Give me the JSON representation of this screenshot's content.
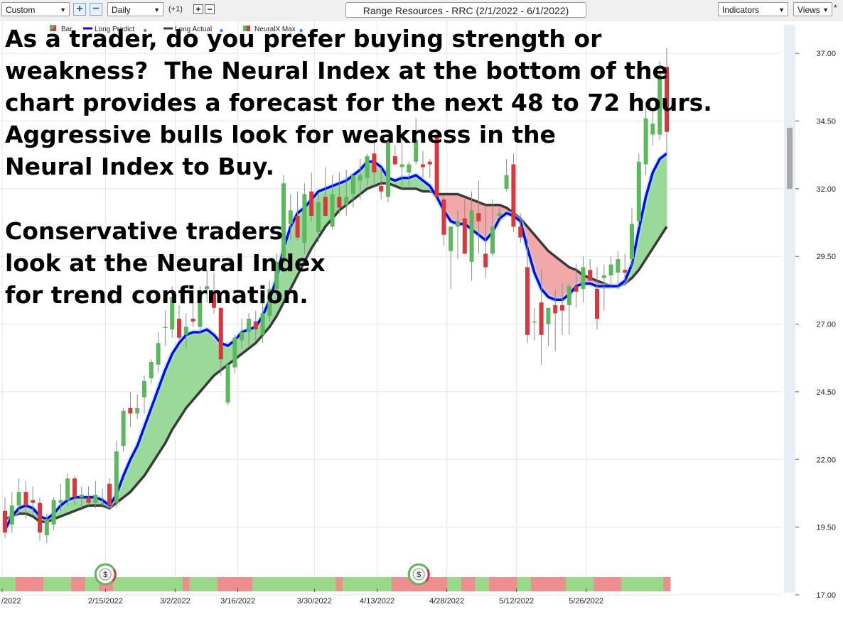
{
  "toolbar": {
    "preset": "Custom",
    "period": "Daily",
    "period_offset": "(+1)",
    "title": "Range Resources - RRC (2/1/2022 - 6/1/2022)",
    "indicators": "Indicators",
    "views": "Views"
  },
  "overlay": {
    "paragraph1": "As a trader, do you prefer buying strength or\nweakness?  The Neural Index at the bottom of the\nchart provides a forecast for the next 48 to 72 hours.\nAggressive bulls look for weakness in the\nNeural Index to Buy.",
    "paragraph2": "Conservative traders\nlook at the Neural Index\nfor trend confirmation."
  },
  "colors": {
    "up_candle": "#5cb85c",
    "down_candle": "#d9363e",
    "long_predict": "#0a0ae0",
    "long_actual": "#3a3a3a",
    "fill_bull": "#9ad99a",
    "fill_bear": "#f0a8a8",
    "index_bull": "#9ad88a",
    "index_bear": "#ee8e8e"
  },
  "chart_data": {
    "type": "candlestick",
    "title": "Range Resources - RRC (2/1/2022 - 6/1/2022)",
    "ylim": [
      17.0,
      38.0
    ],
    "y_ticks": [
      "17.00",
      "19.50",
      "22.00",
      "24.50",
      "27.00",
      "29.50",
      "32.00",
      "34.50",
      "37.00"
    ],
    "x_ticks": [
      "/2022",
      "2/15/2022",
      "3/2/2022",
      "3/16/2022",
      "3/30/2022",
      "4/13/2022",
      "4/28/2022",
      "5/12/2022",
      "5/26/2022"
    ],
    "legend": [
      "Bar",
      "Long Predict",
      "Long Actual",
      "NeuralX Max"
    ],
    "candles": [
      [
        20.1,
        20.6,
        19.1,
        19.3
      ],
      [
        19.6,
        20.8,
        19.3,
        20.3
      ],
      [
        20.3,
        21.3,
        20.0,
        20.8
      ],
      [
        20.8,
        21.2,
        19.8,
        20.3
      ],
      [
        20.5,
        21.0,
        20.0,
        20.4
      ],
      [
        20.4,
        20.6,
        19.0,
        19.3
      ],
      [
        19.2,
        20.0,
        18.9,
        19.8
      ],
      [
        19.6,
        20.6,
        19.4,
        20.5
      ],
      [
        20.4,
        21.1,
        20.1,
        20.5
      ],
      [
        20.5,
        21.5,
        20.3,
        21.3
      ],
      [
        21.3,
        21.4,
        20.3,
        20.6
      ],
      [
        20.6,
        21.0,
        20.2,
        20.7
      ],
      [
        20.6,
        21.0,
        20.3,
        20.4
      ],
      [
        20.4,
        21.2,
        20.2,
        20.7
      ],
      [
        20.4,
        20.9,
        20.2,
        20.4
      ],
      [
        21.1,
        21.3,
        20.2,
        20.3
      ],
      [
        20.4,
        22.7,
        20.2,
        22.3
      ],
      [
        22.5,
        23.9,
        22.3,
        23.8
      ],
      [
        23.9,
        24.5,
        23.2,
        23.7
      ],
      [
        23.7,
        24.4,
        23.5,
        23.9
      ],
      [
        24.3,
        25.1,
        23.7,
        24.9
      ],
      [
        25.0,
        25.7,
        24.8,
        25.6
      ],
      [
        25.5,
        26.7,
        25.2,
        26.3
      ],
      [
        26.9,
        27.5,
        26.2,
        26.9
      ],
      [
        26.8,
        28.4,
        26.5,
        28.0
      ],
      [
        27.2,
        27.7,
        26.4,
        26.5
      ],
      [
        26.6,
        27.4,
        26.1,
        26.9
      ],
      [
        27.2,
        28.0,
        26.9,
        27.1
      ],
      [
        26.9,
        28.4,
        26.6,
        28.2
      ],
      [
        28.3,
        29.0,
        27.8,
        28.4
      ],
      [
        28.2,
        28.9,
        27.4,
        27.6
      ],
      [
        27.6,
        27.6,
        25.1,
        25.7
      ],
      [
        24.1,
        25.6,
        24.0,
        25.5
      ],
      [
        25.4,
        26.6,
        25.2,
        26.5
      ],
      [
        26.4,
        27.2,
        26.1,
        26.7
      ],
      [
        26.7,
        27.4,
        26.2,
        27.2
      ],
      [
        27.1,
        27.5,
        26.4,
        26.8
      ],
      [
        26.6,
        27.9,
        26.3,
        27.4
      ],
      [
        27.3,
        28.6,
        27.1,
        28.3
      ],
      [
        28.3,
        29.6,
        28.1,
        29.3
      ],
      [
        29.4,
        32.5,
        29.2,
        32.2
      ],
      [
        30.7,
        31.8,
        30.1,
        31.2
      ],
      [
        31.0,
        31.9,
        30.1,
        30.2
      ],
      [
        30.0,
        32.2,
        29.6,
        31.8
      ],
      [
        31.9,
        32.6,
        30.8,
        31.0
      ],
      [
        30.4,
        31.8,
        30.0,
        31.5
      ],
      [
        31.7,
        32.8,
        31.1,
        31.0
      ],
      [
        30.6,
        32.5,
        30.5,
        31.8
      ],
      [
        31.7,
        32.6,
        31.1,
        31.3
      ],
      [
        31.4,
        32.7,
        31.0,
        31.7
      ],
      [
        31.8,
        32.4,
        31.3,
        32.5
      ],
      [
        32.3,
        33.1,
        31.6,
        32.5
      ],
      [
        32.4,
        33.3,
        32.1,
        33.2
      ],
      [
        33.3,
        33.7,
        32.1,
        32.6
      ],
      [
        32.1,
        32.8,
        31.6,
        31.9
      ],
      [
        31.7,
        33.9,
        31.5,
        33.7
      ],
      [
        33.2,
        33.6,
        32.9,
        32.9
      ],
      [
        32.8,
        34.1,
        32.0,
        32.9
      ],
      [
        32.6,
        33.0,
        32.1,
        32.9
      ],
      [
        33.0,
        34.6,
        32.9,
        33.8
      ],
      [
        32.9,
        33.4,
        32.4,
        32.8
      ],
      [
        33.0,
        33.1,
        32.4,
        32.9
      ],
      [
        34.0,
        34.2,
        31.8,
        31.7
      ],
      [
        31.6,
        31.7,
        29.9,
        30.3
      ],
      [
        29.7,
        30.6,
        28.3,
        30.6
      ],
      [
        30.6,
        31.2,
        29.4,
        30.8
      ],
      [
        30.9,
        31.6,
        29.6,
        29.6
      ],
      [
        29.3,
        31.9,
        28.6,
        31.2
      ],
      [
        31.1,
        32.3,
        29.6,
        30.8
      ],
      [
        29.6,
        31.4,
        28.7,
        29.1
      ],
      [
        29.6,
        31.6,
        29.5,
        30.6
      ],
      [
        31.0,
        31.3,
        30.9,
        31.1
      ],
      [
        32.0,
        33.1,
        31.9,
        32.5
      ],
      [
        32.9,
        33.3,
        30.4,
        30.6
      ],
      [
        30.6,
        31.1,
        30.0,
        30.2
      ],
      [
        29.1,
        30.2,
        26.3,
        26.6
      ],
      [
        27.1,
        27.6,
        26.4,
        27.1
      ],
      [
        27.8,
        29.0,
        25.5,
        26.6
      ],
      [
        27.0,
        27.6,
        26.2,
        27.6
      ],
      [
        27.7,
        28.3,
        26.0,
        27.4
      ],
      [
        27.7,
        28.5,
        26.6,
        27.5
      ],
      [
        27.7,
        28.5,
        26.6,
        28.4
      ],
      [
        28.4,
        29.2,
        27.6,
        28.2
      ],
      [
        28.3,
        29.5,
        27.8,
        29.1
      ],
      [
        29.0,
        29.4,
        28.7,
        28.6
      ],
      [
        28.3,
        29.1,
        26.8,
        27.2
      ],
      [
        28.7,
        29.2,
        27.5,
        28.8
      ],
      [
        28.8,
        29.5,
        28.4,
        29.2
      ],
      [
        28.9,
        29.7,
        28.3,
        29.4
      ],
      [
        29.0,
        29.6,
        28.4,
        28.9
      ],
      [
        29.4,
        31.3,
        29.1,
        30.7
      ],
      [
        30.8,
        33.3,
        30.6,
        33.0
      ],
      [
        32.9,
        35.2,
        32.5,
        34.6
      ],
      [
        34.0,
        35.0,
        33.6,
        34.4
      ],
      [
        34.0,
        36.7,
        33.8,
        36.2
      ],
      [
        36.5,
        37.2,
        33.2,
        34.1
      ]
    ],
    "series": [
      {
        "name": "Long Predict",
        "values": [
          19.4,
          19.9,
          20.2,
          20.3,
          20.2,
          19.9,
          19.8,
          20.0,
          20.3,
          20.5,
          20.6,
          20.6,
          20.6,
          20.6,
          20.5,
          20.3,
          20.7,
          21.4,
          22.0,
          22.5,
          23.2,
          23.9,
          24.6,
          25.3,
          25.9,
          26.3,
          26.6,
          26.7,
          26.7,
          26.8,
          26.6,
          26.3,
          26.2,
          26.4,
          26.7,
          26.8,
          26.9,
          27.3,
          27.9,
          28.7,
          29.8,
          30.6,
          31.1,
          31.3,
          31.6,
          31.9,
          32.0,
          32.1,
          32.2,
          32.3,
          32.5,
          32.7,
          33.0,
          33.0,
          32.8,
          32.4,
          32.3,
          32.4,
          32.4,
          32.5,
          32.3,
          32.1,
          31.7,
          31.2,
          30.8,
          30.7,
          30.7,
          30.5,
          30.3,
          30.1,
          30.4,
          30.9,
          31.1,
          31.0,
          30.8,
          29.8,
          28.9,
          28.3,
          28.0,
          27.9,
          27.9,
          28.1,
          28.4,
          28.5,
          28.5,
          28.4,
          28.4,
          28.4,
          28.4,
          28.6,
          29.2,
          30.5,
          31.7,
          32.6,
          33.1,
          33.3
        ]
      },
      {
        "name": "Long Actual",
        "values": [
          19.8,
          19.9,
          20.0,
          20.0,
          19.9,
          19.7,
          19.7,
          19.8,
          19.9,
          20.0,
          20.1,
          20.2,
          20.3,
          20.3,
          20.3,
          20.2,
          20.4,
          20.6,
          20.8,
          21.1,
          21.4,
          21.8,
          22.2,
          22.6,
          23.1,
          23.5,
          23.9,
          24.2,
          24.5,
          24.8,
          25.1,
          25.3,
          25.5,
          25.7,
          25.9,
          26.1,
          26.3,
          26.6,
          26.9,
          27.3,
          27.8,
          28.3,
          28.8,
          29.3,
          29.8,
          30.2,
          30.6,
          30.9,
          31.2,
          31.4,
          31.6,
          31.8,
          32.0,
          32.1,
          32.2,
          32.2,
          32.1,
          32.0,
          32.0,
          32.0,
          31.9,
          31.9,
          31.8,
          31.8,
          31.8,
          31.8,
          31.7,
          31.6,
          31.5,
          31.4,
          31.4,
          31.4,
          31.3,
          31.1,
          30.9,
          30.6,
          30.3,
          30.0,
          29.7,
          29.5,
          29.3,
          29.1,
          29.0,
          28.8,
          28.7,
          28.6,
          28.5,
          28.4,
          28.4,
          28.5,
          28.7,
          29.0,
          29.4,
          29.8,
          30.2,
          30.6
        ]
      }
    ],
    "neural_index": [
      1,
      1,
      0,
      0,
      0,
      0,
      1,
      1,
      1,
      1,
      0,
      0,
      1,
      1,
      0,
      0,
      1,
      1,
      1,
      1,
      1,
      1,
      1,
      1,
      1,
      1,
      0,
      1,
      1,
      1,
      1,
      0,
      0,
      0,
      0,
      0,
      1,
      1,
      1,
      1,
      1,
      1,
      1,
      1,
      1,
      1,
      1,
      1,
      0,
      1,
      1,
      1,
      1,
      1,
      1,
      1,
      0,
      0,
      0,
      0,
      0,
      0,
      0,
      0,
      1,
      1,
      0,
      0,
      1,
      1,
      0,
      0,
      0,
      0,
      1,
      1,
      0,
      0,
      0,
      0,
      0,
      1,
      1,
      1,
      1,
      0,
      0,
      0,
      0,
      1,
      1,
      1,
      1,
      1,
      1,
      0
    ],
    "markers": [
      {
        "label": "$",
        "index": 14
      },
      {
        "label": "$",
        "index": 59
      }
    ]
  }
}
